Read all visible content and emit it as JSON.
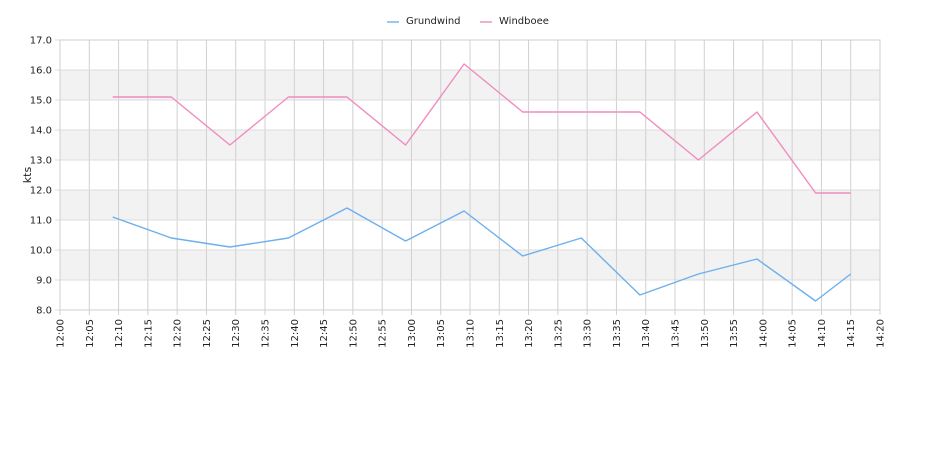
{
  "chart_data": {
    "type": "line",
    "ylabel": "kts",
    "ylim": [
      8.0,
      17.0
    ],
    "y_ticks": [
      "8.0",
      "9.0",
      "10.0",
      "11.0",
      "12.0",
      "13.0",
      "14.0",
      "15.0",
      "16.0",
      "17.0"
    ],
    "x_range": [
      "12:00",
      "14:20"
    ],
    "x_ticks": [
      "12:00",
      "12:05",
      "12:10",
      "12:15",
      "12:20",
      "12:25",
      "12:30",
      "12:35",
      "12:40",
      "12:45",
      "12:50",
      "12:55",
      "13:00",
      "13:05",
      "13:10",
      "13:15",
      "13:20",
      "13:25",
      "13:30",
      "13:35",
      "13:40",
      "13:45",
      "13:50",
      "13:55",
      "14:00",
      "14:05",
      "14:10",
      "14:15",
      "14:20"
    ],
    "legend_position": "top-center",
    "grid": true,
    "series": [
      {
        "name": "Grundwind",
        "color": "#6cb0ee",
        "points": [
          {
            "t": "12:09",
            "y": 11.1
          },
          {
            "t": "12:19",
            "y": 10.4
          },
          {
            "t": "12:29",
            "y": 10.1
          },
          {
            "t": "12:39",
            "y": 10.4
          },
          {
            "t": "12:49",
            "y": 11.4
          },
          {
            "t": "12:59",
            "y": 10.3
          },
          {
            "t": "13:09",
            "y": 11.3
          },
          {
            "t": "13:19",
            "y": 9.8
          },
          {
            "t": "13:29",
            "y": 10.4
          },
          {
            "t": "13:39",
            "y": 8.5
          },
          {
            "t": "13:49",
            "y": 9.2
          },
          {
            "t": "13:59",
            "y": 9.7
          },
          {
            "t": "14:09",
            "y": 8.3
          },
          {
            "t": "14:15",
            "y": 9.2
          }
        ]
      },
      {
        "name": "Windboee",
        "color": "#f08cbf",
        "points": [
          {
            "t": "12:09",
            "y": 15.1
          },
          {
            "t": "12:19",
            "y": 15.1
          },
          {
            "t": "12:29",
            "y": 13.5
          },
          {
            "t": "12:39",
            "y": 15.1
          },
          {
            "t": "12:49",
            "y": 15.1
          },
          {
            "t": "12:59",
            "y": 13.5
          },
          {
            "t": "13:09",
            "y": 16.2
          },
          {
            "t": "13:19",
            "y": 14.6
          },
          {
            "t": "13:29",
            "y": 14.6
          },
          {
            "t": "13:39",
            "y": 14.6
          },
          {
            "t": "13:49",
            "y": 13.0
          },
          {
            "t": "13:59",
            "y": 14.6
          },
          {
            "t": "14:09",
            "y": 11.9
          },
          {
            "t": "14:15",
            "y": 11.9
          }
        ]
      }
    ]
  }
}
